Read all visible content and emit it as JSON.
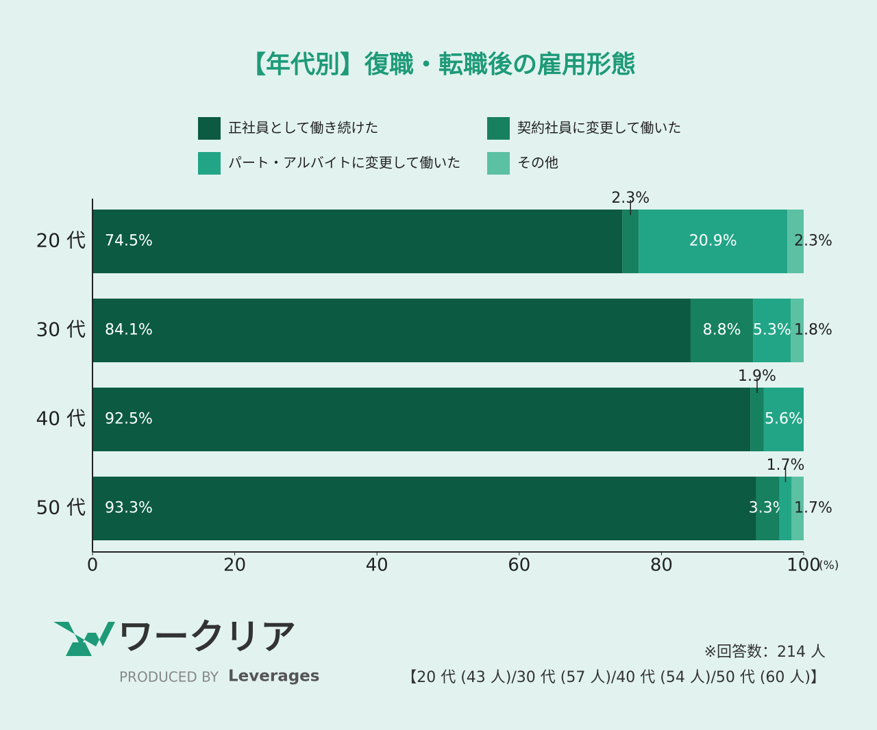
{
  "chart_data": {
    "type": "stacked-bar-horizontal",
    "title": "【年代別】復職・転職後の雇用形態",
    "categories": [
      "20 代",
      "30 代",
      "40 代",
      "50 代"
    ],
    "series": [
      {
        "name": "正社員として働き続けた",
        "color": "#0b5a41",
        "values": [
          74.5,
          84.1,
          92.5,
          93.3
        ],
        "value_labels": [
          "74.5%",
          "84.1%",
          "92.5%",
          "93.3%"
        ]
      },
      {
        "name": "契約社員に変更して働いた",
        "color": "#17805f",
        "values": [
          2.3,
          8.8,
          1.9,
          3.3
        ],
        "value_labels": [
          "2.3%",
          "8.8%",
          "1.9%",
          "3.3%"
        ]
      },
      {
        "name": "パート・アルバイトに変更して働いた",
        "color": "#22a586",
        "values": [
          20.9,
          5.3,
          5.6,
          1.7
        ],
        "value_labels": [
          "20.9%",
          "5.3%",
          "5.6%",
          "1.7%"
        ]
      },
      {
        "name": "その他",
        "color": "#5cc0a3",
        "values": [
          2.3,
          1.8,
          null,
          1.7
        ],
        "value_labels": [
          "2.3%",
          "1.8%",
          null,
          "1.7%"
        ]
      }
    ],
    "xlim": [
      0,
      100
    ],
    "xticks": [
      0,
      20,
      40,
      60,
      80,
      100
    ],
    "x_axis_label": "(%)",
    "notes": [
      "※回答数：214 人",
      "【20 代 (43 人)/30 代 (57 人)/40 代 (54 人)/50 代 (60 人)】"
    ],
    "logo": {
      "name": "ワークリア",
      "produced_by": "PRODUCED BY",
      "company": "Leverages"
    }
  }
}
